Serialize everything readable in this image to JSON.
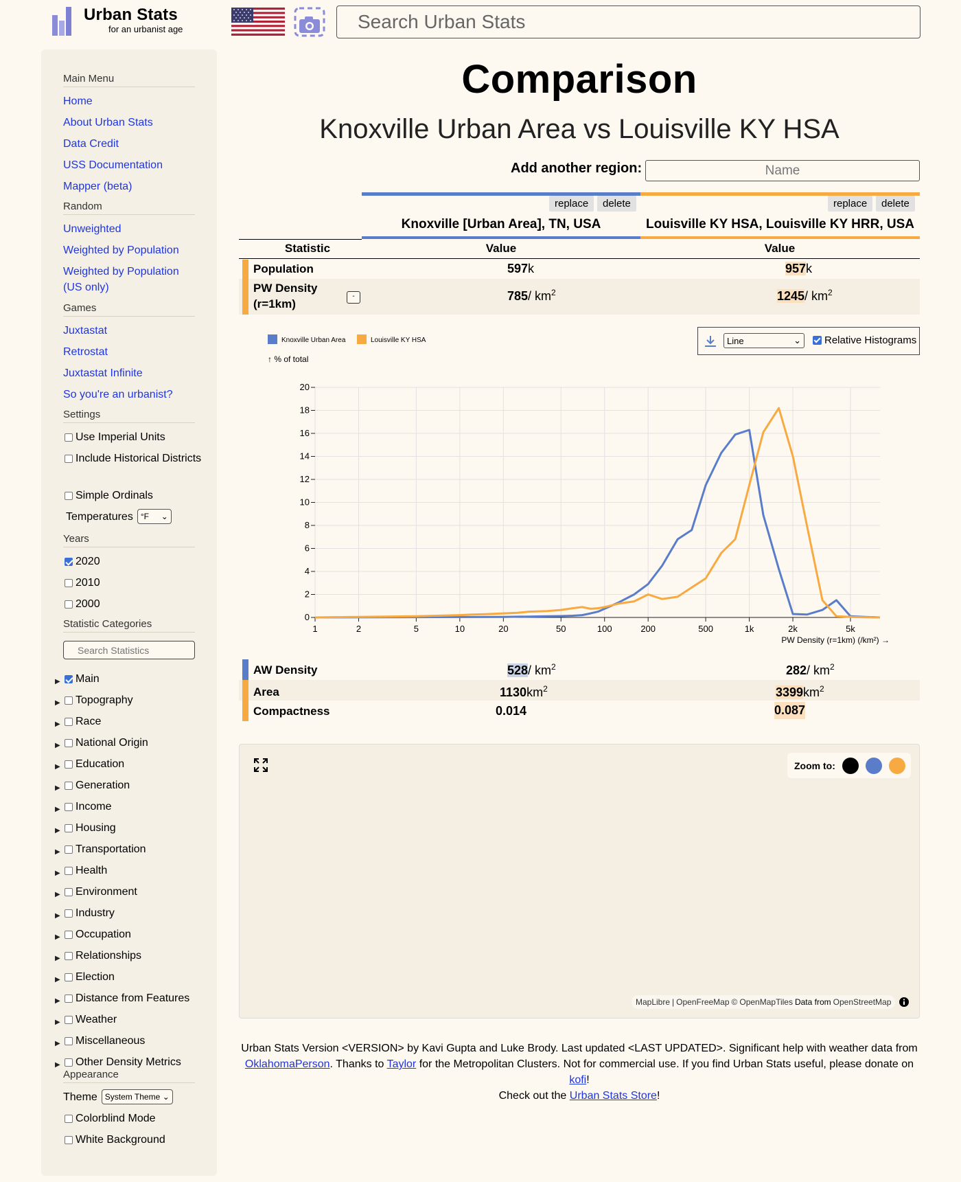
{
  "header": {
    "logo_title": "Urban Stats",
    "logo_subtitle": "for an urbanist age",
    "search_placeholder": "Search Urban Stats"
  },
  "sidebar": {
    "main_menu": {
      "heading": "Main Menu",
      "items": [
        "Home",
        "About Urban Stats",
        "Data Credit",
        "USS Documentation",
        "Mapper (beta)"
      ]
    },
    "random": {
      "heading": "Random",
      "items": [
        "Unweighted",
        "Weighted by Population",
        "Weighted by Population (US only)"
      ]
    },
    "games": {
      "heading": "Games",
      "items": [
        "Juxtastat",
        "Retrostat",
        "Juxtastat Infinite",
        "So you're an urbanist?"
      ]
    },
    "settings": {
      "heading": "Settings",
      "use_imperial": "Use Imperial Units",
      "include_historical": "Include Historical Districts",
      "simple_ordinals": "Simple Ordinals",
      "temperatures_label": "Temperatures",
      "temperatures_value": "°F"
    },
    "years": {
      "heading": "Years",
      "items": [
        {
          "label": "2020",
          "checked": true
        },
        {
          "label": "2010",
          "checked": false
        },
        {
          "label": "2000",
          "checked": false
        }
      ]
    },
    "stat_categories": {
      "heading": "Statistic Categories",
      "search_placeholder": "Search Statistics",
      "items": [
        {
          "label": "Main",
          "checked": true
        },
        {
          "label": "Topography",
          "checked": false
        },
        {
          "label": "Race",
          "checked": false
        },
        {
          "label": "National Origin",
          "checked": false
        },
        {
          "label": "Education",
          "checked": false
        },
        {
          "label": "Generation",
          "checked": false
        },
        {
          "label": "Income",
          "checked": false
        },
        {
          "label": "Housing",
          "checked": false
        },
        {
          "label": "Transportation",
          "checked": false
        },
        {
          "label": "Health",
          "checked": false
        },
        {
          "label": "Environment",
          "checked": false
        },
        {
          "label": "Industry",
          "checked": false
        },
        {
          "label": "Occupation",
          "checked": false
        },
        {
          "label": "Relationships",
          "checked": false
        },
        {
          "label": "Election",
          "checked": false
        },
        {
          "label": "Distance from Features",
          "checked": false
        },
        {
          "label": "Weather",
          "checked": false
        },
        {
          "label": "Miscellaneous",
          "checked": false
        },
        {
          "label": "Other Density Metrics",
          "checked": false
        }
      ]
    },
    "appearance": {
      "heading": "Appearance",
      "theme_label": "Theme",
      "theme_value": "System Theme",
      "colorblind": "Colorblind Mode",
      "white_bg": "White Background"
    }
  },
  "main": {
    "title": "Comparison",
    "subtitle": "Knoxville Urban Area vs Louisville KY HSA",
    "add_region_label": "Add another region:",
    "add_region_placeholder": "Name",
    "replace_label": "replace",
    "delete_label": "delete",
    "colors": {
      "region1": "#5a7dc9",
      "region2": "#f7aa41"
    },
    "region1_name": "Knoxville [Urban Area], TN, USA",
    "region2_name": "Louisville KY HSA, Louisville KY HRR, USA",
    "col_statistic": "Statistic",
    "col_value": "Value",
    "rows": {
      "population": {
        "label": "Population",
        "v1_num": "597",
        "v1_unit": "k",
        "v2_num": "957",
        "v2_unit": "k"
      },
      "pw_density": {
        "label": "PW Density (r=1km)",
        "toggle": "-",
        "v1_num": "785",
        "v1_unit": "/ km",
        "v2_num": "1245",
        "v2_unit": "/ km",
        "unit_exp": "2"
      },
      "aw_density": {
        "label": "AW Density",
        "v1_num": "528",
        "v1_unit": "/ km",
        "v2_num": "282",
        "v2_unit": "/ km",
        "unit_exp": "2"
      },
      "area": {
        "label": "Area",
        "v1_num": "1130",
        "v1_unit": "km",
        "v2_num": "3399",
        "v2_unit": "km",
        "unit_exp": "2"
      },
      "compactness": {
        "label": "Compactness",
        "v1_num": "0.014",
        "v2_num": "0.087"
      }
    },
    "chart_controls": {
      "download_icon": "download-icon",
      "mode_value": "Line",
      "relative_label": "Relative Histograms",
      "relative_checked": true
    },
    "map": {
      "zoom_label": "Zoom to:",
      "zoom_colors": [
        "#000000",
        "#5a7dc9",
        "#f7aa41"
      ],
      "attribution": {
        "maplibre": "MapLibre",
        "sep": "|",
        "openfreemap": "OpenFreeMap",
        "copyright": "©",
        "openmaptiles": "OpenMapTiles",
        "data_from": "Data from",
        "osm": "OpenStreetMap"
      }
    },
    "footer": {
      "t1": "Urban Stats Version <VERSION> by Kavi Gupta and Luke Brody. Last updated <LAST UPDATED>. Significant help with weather data from",
      "l1": "OklahomaPerson",
      "t2": ". Thanks to",
      "l2": "Taylor",
      "t3": "for the Metropolitan Clusters. Not for commercial use. If you find Urban Stats useful, please donate on",
      "l3": "kofi",
      "t4": "!",
      "t5": "Check out the",
      "l4": "Urban Stats Store",
      "t6": "!"
    }
  },
  "chart_data": {
    "type": "line",
    "x_scale": "log",
    "x_ticks": [
      1,
      2,
      5,
      10,
      20,
      50,
      100,
      200,
      500,
      1000,
      2000,
      5000
    ],
    "x_tick_labels": [
      "1",
      "2",
      "5",
      "10",
      "20",
      "50",
      "100",
      "200",
      "500",
      "1k",
      "2k",
      "5k"
    ],
    "xlabel": "PW Density (r=1km) (/km²) →",
    "ylabel": "↑ % of total",
    "ylim": [
      0,
      20
    ],
    "y_ticks": [
      0,
      2,
      4,
      6,
      8,
      10,
      12,
      14,
      16,
      18,
      20
    ],
    "grid": true,
    "legend_position": "top-left",
    "series": [
      {
        "name": "Knoxville Urban Area",
        "color": "#5a7dc9",
        "x": [
          1,
          20,
          30,
          40,
          50,
          60,
          70,
          80,
          90,
          100,
          125,
          160,
          200,
          250,
          320,
          400,
          500,
          640,
          800,
          1000,
          1250,
          1600,
          2000,
          2500,
          3200,
          4000,
          5000,
          6300,
          8000
        ],
        "y": [
          0,
          0.05,
          0.08,
          0.1,
          0.12,
          0.15,
          0.2,
          0.35,
          0.5,
          0.75,
          1.3,
          2.0,
          2.9,
          4.5,
          6.8,
          7.6,
          11.5,
          14.3,
          15.9,
          16.3,
          8.9,
          4.2,
          0.3,
          0.25,
          0.65,
          1.5,
          0.1,
          0.05,
          0
        ]
      },
      {
        "name": "Louisville KY HSA",
        "color": "#f7aa41",
        "x": [
          1,
          2,
          5,
          7,
          10,
          12,
          15,
          20,
          25,
          30,
          40,
          50,
          60,
          70,
          80,
          90,
          100,
          125,
          160,
          200,
          250,
          320,
          400,
          500,
          640,
          800,
          1000,
          1250,
          1600,
          2000,
          2500,
          3200,
          4000,
          5000,
          6300,
          8000
        ],
        "y": [
          0,
          0.05,
          0.1,
          0.15,
          0.2,
          0.25,
          0.28,
          0.35,
          0.4,
          0.5,
          0.55,
          0.65,
          0.8,
          0.9,
          0.75,
          0.8,
          0.9,
          1.2,
          1.4,
          2.0,
          1.6,
          1.8,
          2.6,
          3.4,
          5.6,
          6.8,
          11.5,
          16.1,
          18.2,
          14.0,
          8.0,
          1.5,
          0.1,
          0.05,
          0.02,
          0
        ]
      }
    ]
  }
}
